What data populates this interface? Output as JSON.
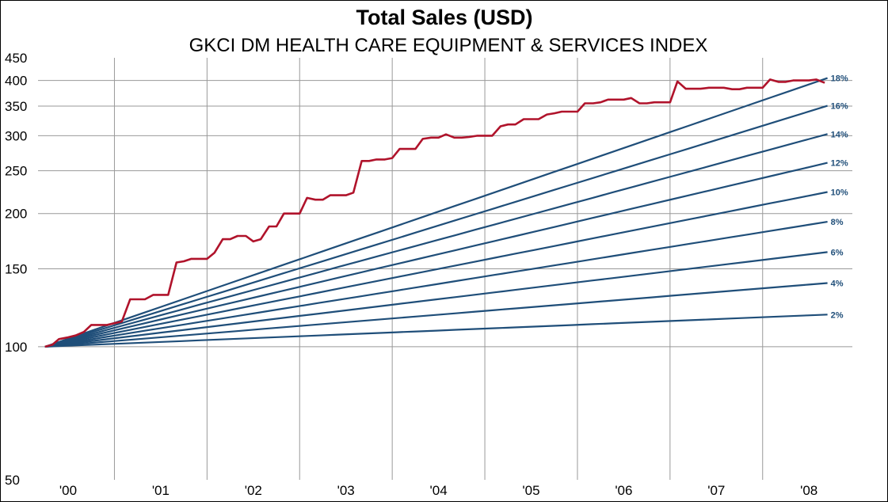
{
  "chart_data": {
    "type": "line",
    "title": "Total Sales (USD)",
    "subtitle": "GKCI DM HEALTH CARE EQUIPMENT & SERVICES INDEX",
    "y_scale": "log",
    "ylim": [
      50,
      450
    ],
    "y_ticks": [
      50,
      100,
      150,
      200,
      250,
      300,
      350,
      400,
      450
    ],
    "x_range": [
      2000.0,
      2008.45
    ],
    "x_ticks": [
      {
        "value": 2000.25,
        "label": "'00"
      },
      {
        "value": 2001.25,
        "label": "'01"
      },
      {
        "value": 2002.25,
        "label": "'02"
      },
      {
        "value": 2003.25,
        "label": "'03"
      },
      {
        "value": 2004.25,
        "label": "'04"
      },
      {
        "value": 2005.25,
        "label": "'05"
      },
      {
        "value": 2006.25,
        "label": "'06"
      },
      {
        "value": 2007.25,
        "label": "'07"
      },
      {
        "value": 2008.25,
        "label": "'08"
      }
    ],
    "vertical_gridlines": [
      2000.75,
      2001.75,
      2002.75,
      2003.75,
      2004.75,
      2005.75,
      2006.75,
      2007.75
    ],
    "horizontal_gridlines": [
      100,
      150,
      200,
      250,
      300,
      350,
      400
    ],
    "growth_start": 2000.0,
    "growth_end": 2008.45,
    "growth_color": "#1f4e79",
    "growth_lines": [
      {
        "rate": 2,
        "label": "2%"
      },
      {
        "rate": 4,
        "label": "4%"
      },
      {
        "rate": 6,
        "label": "6%"
      },
      {
        "rate": 8,
        "label": "8%"
      },
      {
        "rate": 10,
        "label": "10%"
      },
      {
        "rate": 12,
        "label": "12%"
      },
      {
        "rate": 14,
        "label": "14%"
      },
      {
        "rate": 16,
        "label": "16%"
      },
      {
        "rate": 18,
        "label": "18%"
      }
    ],
    "sales_series": {
      "color": "#b0132b",
      "x": [
        2000.0,
        2000.08,
        2000.15,
        2000.25,
        2000.33,
        2000.42,
        2000.5,
        2000.58,
        2000.67,
        2000.75,
        2000.83,
        2000.92,
        2001.08,
        2001.17,
        2001.33,
        2001.42,
        2001.5,
        2001.58,
        2001.75,
        2001.83,
        2001.92,
        2002.0,
        2002.08,
        2002.17,
        2002.25,
        2002.33,
        2002.42,
        2002.5,
        2002.58,
        2002.67,
        2002.75,
        2002.83,
        2002.92,
        2003.0,
        2003.08,
        2003.17,
        2003.25,
        2003.33,
        2003.42,
        2003.5,
        2003.58,
        2003.67,
        2003.75,
        2003.83,
        2003.92,
        2004.0,
        2004.08,
        2004.17,
        2004.25,
        2004.33,
        2004.42,
        2004.5,
        2004.58,
        2004.67,
        2004.75,
        2004.83,
        2004.92,
        2005.0,
        2005.08,
        2005.17,
        2005.25,
        2005.33,
        2005.42,
        2005.5,
        2005.58,
        2005.67,
        2005.75,
        2005.83,
        2005.92,
        2006.0,
        2006.08,
        2006.17,
        2006.25,
        2006.33,
        2006.42,
        2006.5,
        2006.58,
        2006.67,
        2006.75,
        2006.83,
        2006.92,
        2007.0,
        2007.08,
        2007.17,
        2007.25,
        2007.33,
        2007.42,
        2007.5,
        2007.58,
        2007.67,
        2007.75,
        2007.83,
        2007.92,
        2008.0,
        2008.08,
        2008.17,
        2008.25,
        2008.33,
        2008.42
      ],
      "y": [
        100,
        101,
        104,
        105,
        106,
        108,
        112,
        112,
        112,
        113,
        114,
        128,
        128,
        131,
        131,
        155,
        156,
        158,
        158,
        163,
        175,
        175,
        178,
        178,
        173,
        175,
        187,
        187,
        200,
        200,
        200,
        217,
        215,
        215,
        220,
        220,
        220,
        223,
        263,
        263,
        265,
        265,
        267,
        280,
        280,
        280,
        295,
        297,
        297,
        302,
        297,
        297,
        298,
        300,
        300,
        300,
        315,
        318,
        318,
        327,
        327,
        327,
        335,
        337,
        340,
        340,
        340,
        355,
        355,
        357,
        362,
        362,
        362,
        365,
        355,
        355,
        357,
        357,
        357,
        398,
        383,
        383,
        383,
        385,
        385,
        385,
        382,
        382,
        385,
        385,
        385,
        402,
        397,
        397,
        400,
        400,
        400,
        402,
        395
      ]
    }
  }
}
